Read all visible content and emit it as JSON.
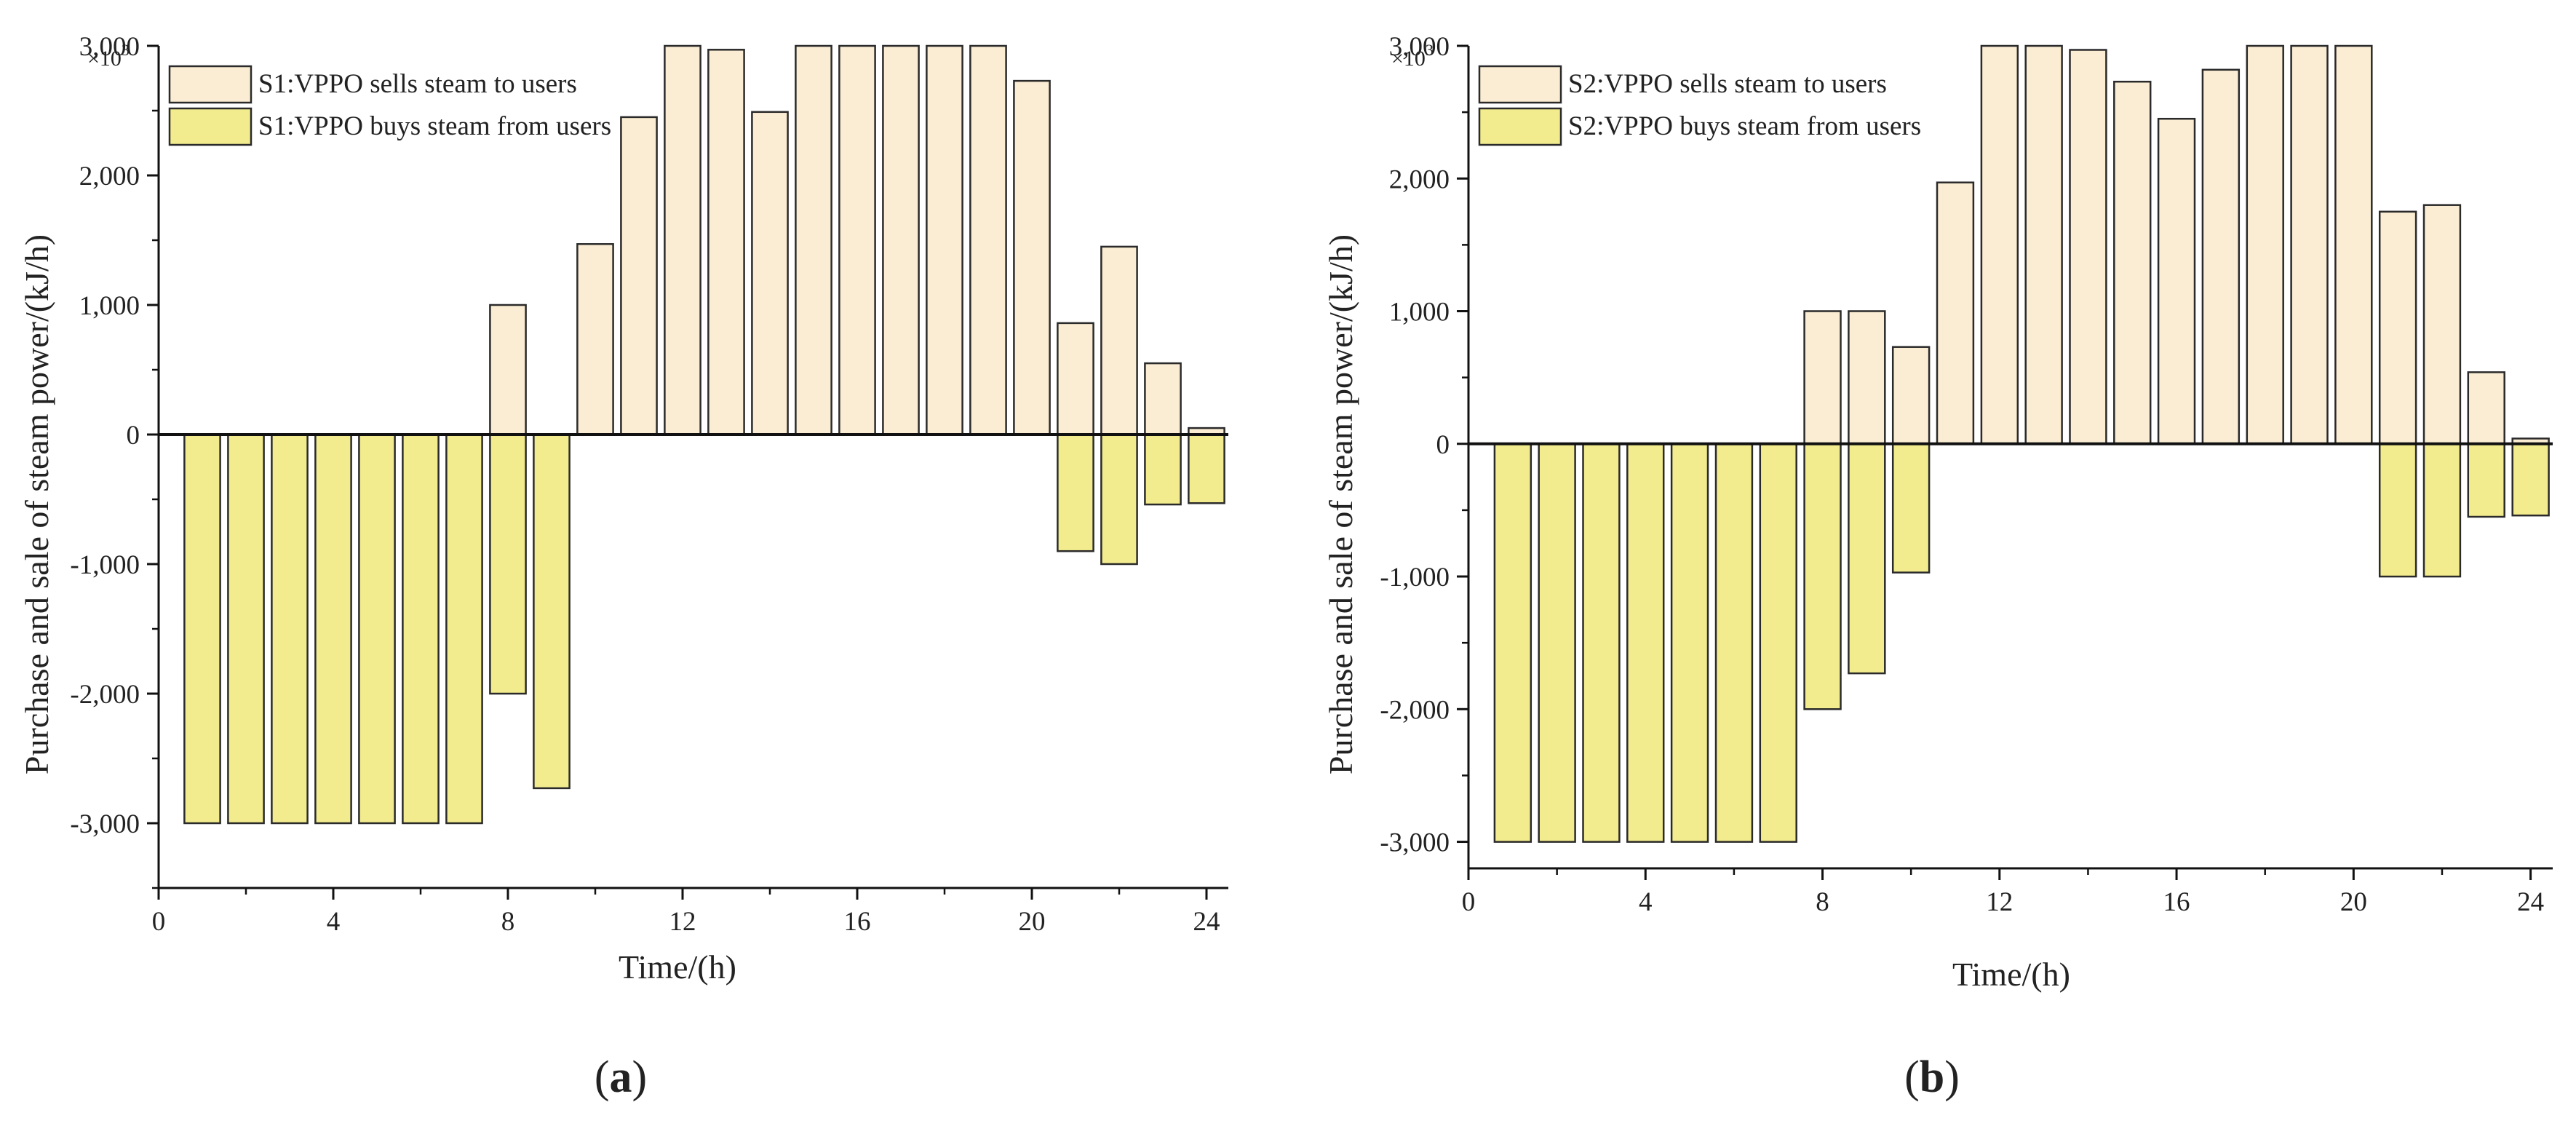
{
  "colors": {
    "sell_fill": "#FBEDD3",
    "buy_fill": "#F2EC8E",
    "bar_stroke": "#2a2a2a",
    "axis": "#111111"
  },
  "chart_data": [
    {
      "type": "bar",
      "caption": "a",
      "xlabel": "Time/(h)",
      "ylabel": "Purchase and sale of steam power/(kJ/h)",
      "y_multiplier_label": "×10",
      "y_multiplier_exp": "3",
      "ylim": [
        -3500,
        3000
      ],
      "xlim": [
        0,
        24.5
      ],
      "xticks": [
        0,
        4,
        8,
        12,
        16,
        20,
        24
      ],
      "xtick_labels": [
        "0",
        "4",
        "8",
        "12",
        "16",
        "20",
        "24"
      ],
      "yticks": [
        -3000,
        -2000,
        -1000,
        0,
        1000,
        2000,
        3000
      ],
      "ytick_labels": [
        "-3,000",
        "-2,000",
        "-1,000",
        "0",
        "1,000",
        "2,000",
        "3,000"
      ],
      "legend_position": "top-left",
      "x": [
        1,
        2,
        3,
        4,
        5,
        6,
        7,
        8,
        9,
        10,
        11,
        12,
        13,
        14,
        15,
        16,
        17,
        18,
        19,
        20,
        21,
        22,
        23,
        24
      ],
      "series": [
        {
          "name": "S1:VPPO sells steam to users",
          "color_key": "sell_fill",
          "values": [
            0,
            0,
            0,
            0,
            0,
            0,
            0,
            1000,
            0,
            1470,
            2450,
            3000,
            2970,
            2490,
            3000,
            3000,
            3000,
            3000,
            3000,
            2730,
            860,
            1450,
            550,
            50
          ]
        },
        {
          "name": "S1:VPPO buys steam from users",
          "color_key": "buy_fill",
          "values": [
            -3000,
            -3000,
            -3000,
            -3000,
            -3000,
            -3000,
            -3000,
            -2000,
            -2730,
            0,
            0,
            0,
            0,
            0,
            0,
            0,
            0,
            0,
            0,
            0,
            -900,
            -1000,
            -540,
            -530
          ]
        }
      ]
    },
    {
      "type": "bar",
      "caption": "b",
      "xlabel": "Time/(h)",
      "ylabel": "Purchase and sale of steam power/(kJ/h)",
      "y_multiplier_label": "×10",
      "y_multiplier_exp": "3",
      "ylim": [
        -3200,
        3000
      ],
      "xlim": [
        0,
        24.5
      ],
      "xticks": [
        0,
        4,
        8,
        12,
        16,
        20,
        24
      ],
      "xtick_labels": [
        "0",
        "4",
        "8",
        "12",
        "16",
        "20",
        "24"
      ],
      "yticks": [
        -3000,
        -2000,
        -1000,
        0,
        1000,
        2000,
        3000
      ],
      "ytick_labels": [
        "-3,000",
        "-2,000",
        "-1,000",
        "0",
        "1,000",
        "2,000",
        "3,000"
      ],
      "legend_position": "top-left",
      "x": [
        1,
        2,
        3,
        4,
        5,
        6,
        7,
        8,
        9,
        10,
        11,
        12,
        13,
        14,
        15,
        16,
        17,
        18,
        19,
        20,
        21,
        22,
        23,
        24
      ],
      "series": [
        {
          "name": "S2:VPPO sells steam to users",
          "color_key": "sell_fill",
          "values": [
            0,
            0,
            0,
            0,
            0,
            0,
            0,
            1000,
            1000,
            730,
            1970,
            3000,
            3000,
            2970,
            2730,
            2450,
            2820,
            3000,
            3000,
            3000,
            1750,
            1800,
            540,
            40
          ]
        },
        {
          "name": "S2:VPPO buys steam from users",
          "color_key": "buy_fill",
          "values": [
            -3000,
            -3000,
            -3000,
            -3000,
            -3000,
            -3000,
            -3000,
            -2000,
            -1730,
            -970,
            0,
            0,
            0,
            0,
            0,
            0,
            0,
            0,
            0,
            0,
            -1000,
            -1000,
            -550,
            -540
          ]
        }
      ]
    }
  ]
}
